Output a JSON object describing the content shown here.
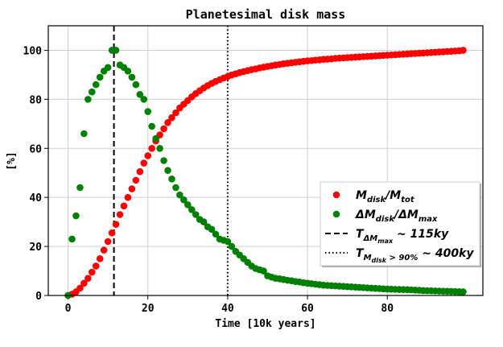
{
  "chart_data": {
    "type": "scatter",
    "title": "Planetesimal disk mass",
    "xlabel": "Time [10k years]",
    "ylabel": "[%]",
    "xlim": [
      -4.95,
      103.95
    ],
    "ylim": [
      0,
      110
    ],
    "xticks": [
      0,
      20,
      40,
      60,
      80
    ],
    "yticks": [
      0,
      20,
      40,
      60,
      80,
      100
    ],
    "grid": true,
    "legend": "lower right",
    "x": [
      0,
      1,
      2,
      3,
      4,
      5,
      6,
      7,
      8,
      9,
      10,
      11,
      12,
      13,
      14,
      15,
      16,
      17,
      18,
      19,
      20,
      21,
      22,
      23,
      24,
      25,
      26,
      27,
      28,
      29,
      30,
      31,
      32,
      33,
      34,
      35,
      36,
      37,
      38,
      39,
      40,
      41,
      42,
      43,
      44,
      45,
      46,
      47,
      48,
      49,
      50,
      51,
      52,
      53,
      54,
      55,
      56,
      57,
      58,
      59,
      60,
      61,
      62,
      63,
      64,
      65,
      66,
      67,
      68,
      69,
      70,
      71,
      72,
      73,
      74,
      75,
      76,
      77,
      78,
      79,
      80,
      81,
      82,
      83,
      84,
      85,
      86,
      87,
      88,
      89,
      90,
      91,
      92,
      93,
      94,
      95,
      96,
      97,
      98,
      99
    ],
    "series": [
      {
        "label": [
          [
            "M",
            0
          ],
          [
            "disk",
            1
          ],
          [
            "/M",
            0
          ],
          [
            "tot",
            1
          ]
        ],
        "color": "#ff0000",
        "values": [
          0,
          0.5,
          1.5,
          3,
          5,
          7,
          9.5,
          12,
          15,
          18.5,
          22,
          25.5,
          29,
          33,
          36.5,
          40,
          43.5,
          47,
          50.5,
          54,
          57,
          60,
          63,
          65.5,
          68,
          70.5,
          72.5,
          74.5,
          76.5,
          78,
          79.5,
          81,
          82.3,
          83.5,
          84.6,
          85.6,
          86.5,
          87.3,
          88,
          88.7,
          89.3,
          89.9,
          90.4,
          90.9,
          91.3,
          91.7,
          92.1,
          92.4,
          92.8,
          93.1,
          93.4,
          93.7,
          94,
          94.2,
          94.5,
          94.7,
          94.9,
          95.1,
          95.3,
          95.5,
          95.7,
          95.8,
          96,
          96.1,
          96.3,
          96.4,
          96.5,
          96.7,
          96.8,
          96.9,
          97,
          97.1,
          97.2,
          97.3,
          97.4,
          97.5,
          97.6,
          97.7,
          97.8,
          97.9,
          98,
          98.1,
          98.2,
          98.3,
          98.4,
          98.5,
          98.6,
          98.7,
          98.8,
          98.9,
          99,
          99.1,
          99.2,
          99.3,
          99.4,
          99.5,
          99.6,
          99.7,
          99.8,
          100
        ]
      },
      {
        "label": [
          [
            "ΔM",
            0
          ],
          [
            "disk",
            1
          ],
          [
            "/ΔM",
            0
          ],
          [
            "max",
            1
          ]
        ],
        "color": "#008000",
        "values": [
          0,
          23,
          32.5,
          44,
          66,
          80,
          83,
          86,
          89,
          91.5,
          93,
          100,
          100,
          94,
          93,
          91.5,
          89,
          86,
          82,
          80,
          75,
          69,
          64,
          60,
          55,
          51,
          47.5,
          44,
          41,
          39,
          37,
          35,
          33,
          31,
          30,
          28,
          27,
          25,
          23,
          22.5,
          22,
          20,
          18,
          16.5,
          15,
          13.5,
          12,
          11,
          10.5,
          10,
          8,
          7.5,
          7,
          6.8,
          6.5,
          6.2,
          6,
          5.7,
          5.5,
          5.2,
          5,
          4.8,
          4.6,
          4.4,
          4.2,
          4.1,
          4,
          3.9,
          3.8,
          3.7,
          3.6,
          3.5,
          3.4,
          3.3,
          3.2,
          3.1,
          3,
          2.9,
          2.8,
          2.7,
          2.6,
          2.55,
          2.5,
          2.45,
          2.4,
          2.35,
          2.3,
          2.2,
          2.1,
          2,
          1.95,
          1.9,
          1.85,
          1.8,
          1.75,
          1.7,
          1.65,
          1.6,
          1.55,
          1.5
        ]
      }
    ],
    "vlines": [
      {
        "x": 11.5,
        "style": "dashed",
        "color": "#000000",
        "label": [
          [
            "T",
            0
          ],
          [
            "ΔM",
            1
          ],
          [
            "max",
            2
          ],
          [
            " ~ 115ky",
            0
          ]
        ]
      },
      {
        "x": 40,
        "style": "dotted",
        "color": "#000000",
        "label": [
          [
            "T",
            0
          ],
          [
            "M",
            1
          ],
          [
            "disk",
            2
          ],
          [
            " > 90%",
            1
          ],
          [
            " ~ 400ky",
            0
          ]
        ]
      }
    ]
  }
}
